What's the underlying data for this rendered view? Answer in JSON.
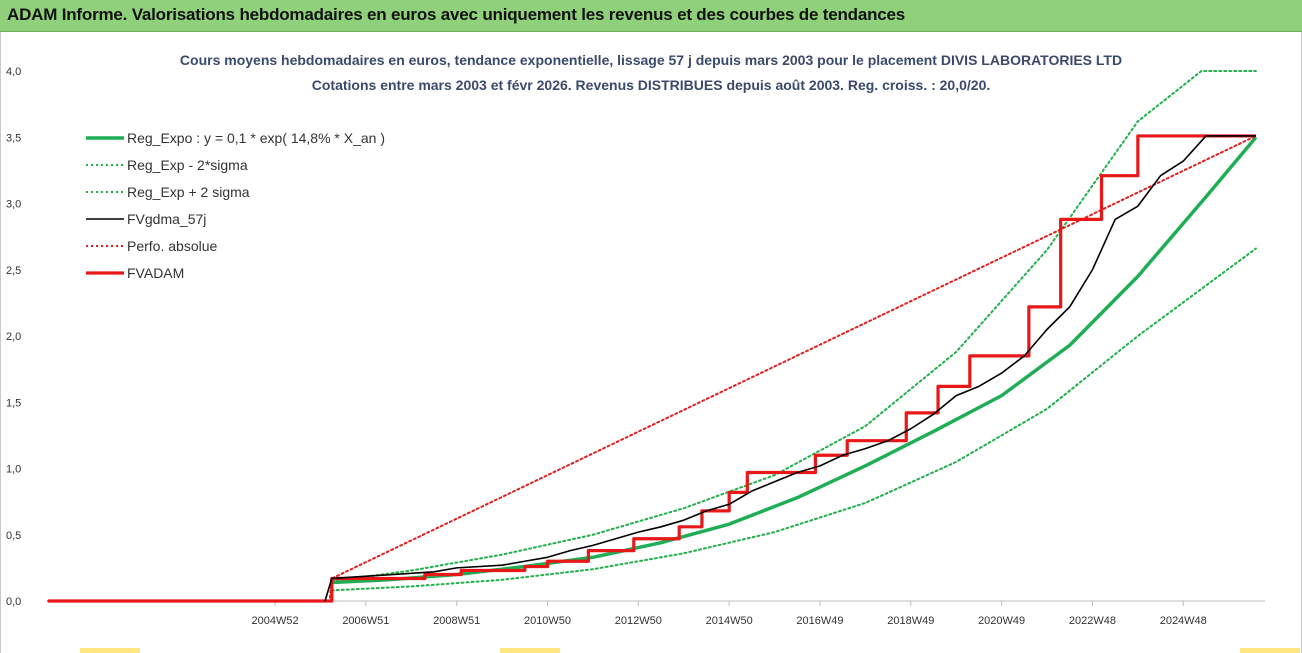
{
  "banner": {
    "title": "ADAM Informe. Valorisations hebdomadaires en euros avec uniquement les revenus et des courbes de tendances"
  },
  "colors": {
    "banner_bg": "#8fd17a",
    "reg_expo": "#1fae55",
    "sigma": "#22b04a",
    "fvgdma": "#000000",
    "perfo": "#e02020",
    "fvadam": "#e81818",
    "title_text": "#3b4a6b"
  },
  "chart_data": {
    "type": "line",
    "title_line1": "Cours moyens hebdomadaires en euros, tendance exponentielle, lissage 57 j depuis mars 2003 pour le placement DIVIS LABORATORIES LTD",
    "title_line2": "Cotations entre mars 2003 et févr 2026. Revenus DISTRIBUES depuis août 2003. Reg. croiss. : 20,0/20.",
    "x_start_year": 2000,
    "x_end_year": 2026.8,
    "x_ticks": [
      {
        "label": "2004W52",
        "year": 2005.0
      },
      {
        "label": "2006W51",
        "year": 2007.0
      },
      {
        "label": "2008W51",
        "year": 2009.0
      },
      {
        "label": "2010W50",
        "year": 2011.0
      },
      {
        "label": "2012W50",
        "year": 2013.0
      },
      {
        "label": "2014W50",
        "year": 2015.0
      },
      {
        "label": "2016W49",
        "year": 2017.0
      },
      {
        "label": "2018W49",
        "year": 2019.0
      },
      {
        "label": "2020W49",
        "year": 2021.0
      },
      {
        "label": "2022W48",
        "year": 2023.0
      },
      {
        "label": "2024W48",
        "year": 2025.0
      }
    ],
    "y_ticks": [
      "0,0",
      "0,5",
      "1,0",
      "1,5",
      "2,0",
      "2,5",
      "3,0",
      "3,5",
      "4,0"
    ],
    "ylim": [
      0,
      4
    ],
    "grid": false,
    "legend_position": "top-left",
    "series": [
      {
        "name": "Reg_Expo : y = 0,1 * exp( 14,8% *  X_an )",
        "style": "solid-thick",
        "color": "#1fae55",
        "x": [
          2006.25,
          2007.5,
          2009.0,
          2010.5,
          2012.0,
          2013.5,
          2015.0,
          2016.5,
          2018.0,
          2019.5,
          2021.0,
          2022.5,
          2024.0,
          2025.5,
          2026.6
        ],
        "y": [
          0.14,
          0.16,
          0.2,
          0.26,
          0.33,
          0.44,
          0.58,
          0.78,
          1.02,
          1.28,
          1.55,
          1.93,
          2.45,
          3.05,
          3.5
        ]
      },
      {
        "name": "Reg_Exp - 2*sigma",
        "style": "dotted",
        "color": "#22b04a",
        "x": [
          2006.25,
          2008.0,
          2010.0,
          2012.0,
          2014.0,
          2016.0,
          2018.0,
          2020.0,
          2022.0,
          2024.0,
          2026.6
        ],
        "y": [
          0.08,
          0.11,
          0.16,
          0.24,
          0.36,
          0.52,
          0.74,
          1.05,
          1.45,
          2.0,
          2.66
        ]
      },
      {
        "name": "Reg_Exp + 2 sigma",
        "style": "dotted",
        "color": "#22b04a",
        "x": [
          2006.25,
          2008.0,
          2010.0,
          2012.0,
          2014.0,
          2016.0,
          2018.0,
          2020.0,
          2022.0,
          2024.0,
          2025.4,
          2026.6
        ],
        "y": [
          0.15,
          0.23,
          0.35,
          0.5,
          0.7,
          0.95,
          1.32,
          1.88,
          2.65,
          3.62,
          4.0,
          4.0
        ]
      },
      {
        "name": "FVgdma_57j",
        "style": "solid",
        "color": "#000000",
        "x": [
          2006.1,
          2006.25,
          2008.5,
          2009.0,
          2010.0,
          2010.5,
          2011.0,
          2011.5,
          2012.0,
          2012.5,
          2013.0,
          2013.5,
          2014.0,
          2014.5,
          2015.0,
          2015.5,
          2016.0,
          2016.5,
          2017.0,
          2017.5,
          2018.0,
          2018.5,
          2019.0,
          2019.5,
          2020.0,
          2020.5,
          2021.0,
          2021.5,
          2022.0,
          2022.5,
          2023.0,
          2023.5,
          2024.0,
          2024.5,
          2025.0,
          2025.5,
          2026.0,
          2026.6
        ],
        "y": [
          0.0,
          0.17,
          0.22,
          0.25,
          0.27,
          0.3,
          0.33,
          0.38,
          0.42,
          0.47,
          0.52,
          0.56,
          0.61,
          0.68,
          0.73,
          0.83,
          0.9,
          0.97,
          1.02,
          1.1,
          1.15,
          1.21,
          1.3,
          1.41,
          1.55,
          1.62,
          1.72,
          1.85,
          2.05,
          2.22,
          2.5,
          2.88,
          2.98,
          3.21,
          3.32,
          3.51,
          3.51,
          3.51
        ]
      },
      {
        "name": "Perfo. absolue",
        "style": "dotted",
        "color": "#e02020",
        "x": [
          2000.0,
          2006.2,
          2006.25,
          2026.6
        ],
        "y": [
          0.0,
          0.0,
          0.17,
          3.51
        ]
      },
      {
        "name": "FVADAM",
        "style": "step-thick",
        "color": "#e81818",
        "x": [
          2000.0,
          2006.2,
          2006.25,
          2008.3,
          2009.1,
          2010.5,
          2011.0,
          2011.9,
          2012.9,
          2013.9,
          2014.4,
          2015.0,
          2015.4,
          2016.9,
          2017.6,
          2018.9,
          2019.6,
          2020.3,
          2021.6,
          2022.3,
          2023.2,
          2024.0,
          2024.5,
          2025.5,
          2026.6
        ],
        "y": [
          0.0,
          0.0,
          0.17,
          0.2,
          0.23,
          0.26,
          0.3,
          0.38,
          0.47,
          0.56,
          0.68,
          0.82,
          0.97,
          1.1,
          1.21,
          1.42,
          1.62,
          1.85,
          2.22,
          2.88,
          3.21,
          3.51,
          3.51,
          3.51,
          3.51
        ]
      }
    ]
  }
}
